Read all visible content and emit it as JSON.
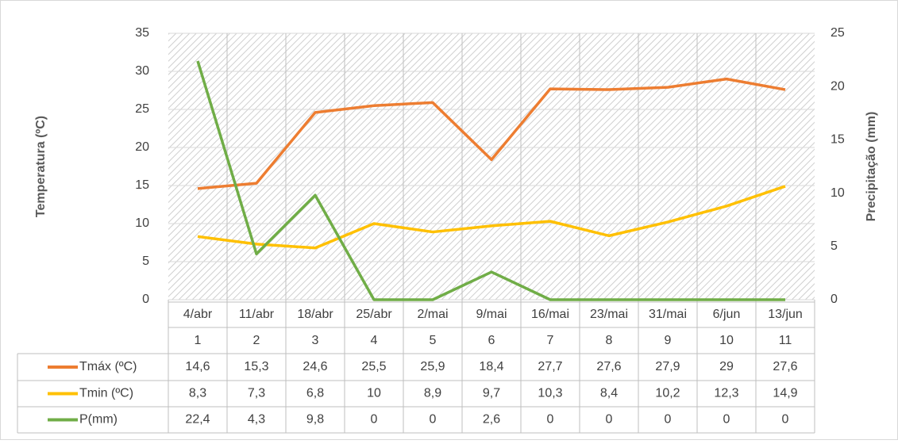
{
  "chart_data": {
    "type": "line",
    "categories": [
      "4/abr",
      "11/abr",
      "18/abr",
      "25/abr",
      "2/mai",
      "9/mai",
      "16/mai",
      "23/mai",
      "31/mai",
      "6/jun",
      "13/jun"
    ],
    "category_numbers": [
      "1",
      "2",
      "3",
      "4",
      "5",
      "6",
      "7",
      "8",
      "9",
      "10",
      "11"
    ],
    "y_label": "Temperatura (ºC)",
    "y2_label": "Precipitação (mm)",
    "ylim": [
      0,
      35
    ],
    "yticks": [
      0,
      5,
      10,
      15,
      20,
      25,
      30,
      35
    ],
    "y2lim": [
      0,
      25
    ],
    "y2ticks": [
      0,
      5,
      10,
      15,
      20,
      25
    ],
    "grid": true,
    "series": [
      {
        "name": "Tmáx (ºC)",
        "color": "#ED7D31",
        "values": [
          14.6,
          15.3,
          24.6,
          25.5,
          25.9,
          18.4,
          27.7,
          27.6,
          27.9,
          29,
          27.6
        ],
        "value_labels": [
          "14,6",
          "15,3",
          "24,6",
          "25,5",
          "25,9",
          "18,4",
          "27,7",
          "27,6",
          "27,9",
          "29",
          "27,6"
        ]
      },
      {
        "name": "Tmin (ºC)",
        "color": "#FFC000",
        "values": [
          8.3,
          7.3,
          6.8,
          10,
          8.9,
          9.7,
          10.3,
          8.4,
          10.2,
          12.3,
          14.9
        ],
        "value_labels": [
          "8,3",
          "7,3",
          "6,8",
          "10",
          "8,9",
          "9,7",
          "10,3",
          "8,4",
          "10,2",
          "12,3",
          "14,9"
        ]
      },
      {
        "name": "P(mm)",
        "color": "#70AD47",
        "axis": "y2",
        "values": [
          22.4,
          4.3,
          9.8,
          0,
          0,
          2.6,
          0,
          0,
          0,
          0,
          0
        ],
        "value_labels": [
          "22,4",
          "4,3",
          "9,8",
          "0",
          "0",
          "2,6",
          "0",
          "0",
          "0",
          "0",
          "0"
        ]
      }
    ]
  }
}
